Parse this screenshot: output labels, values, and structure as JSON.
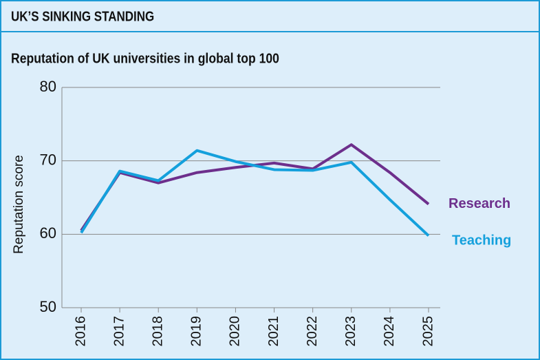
{
  "header": {
    "title": "UK’S SINKING STANDING"
  },
  "chart_data": {
    "type": "line",
    "title": "Reputation of UK universities in global top 100",
    "y_label": "Reputation score",
    "categories": [
      "2016",
      "2017",
      "2018",
      "2019",
      "2020",
      "2021",
      "2022",
      "2023",
      "2024",
      "2025"
    ],
    "series": [
      {
        "name": "Research",
        "color": "#6d2f8c",
        "values": [
          60.5,
          68.4,
          67.0,
          68.4,
          69.1,
          69.7,
          68.9,
          72.2,
          68.4,
          64.1
        ]
      },
      {
        "name": "Teaching",
        "color": "#14a0dc",
        "values": [
          60.2,
          68.6,
          67.3,
          71.4,
          69.9,
          68.8,
          68.7,
          69.8,
          64.7,
          59.8
        ]
      }
    ],
    "ylim": [
      50,
      80
    ],
    "yticks": [
      50,
      60,
      70,
      80
    ],
    "grid": true
  }
}
